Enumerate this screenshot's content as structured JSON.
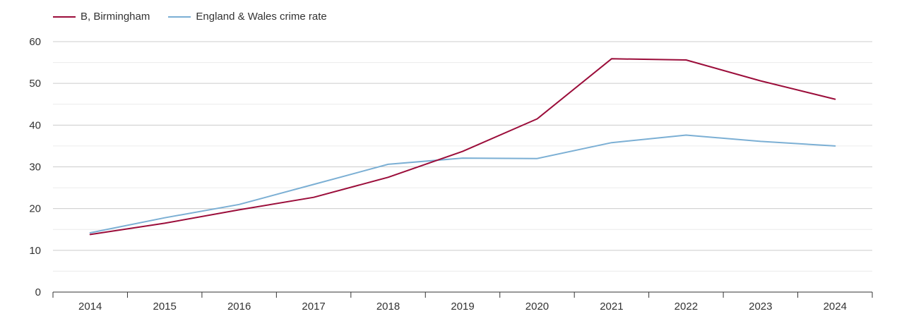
{
  "chart_data": {
    "type": "line",
    "title": "",
    "xlabel": "",
    "ylabel": "",
    "categories": [
      "2014",
      "2015",
      "2016",
      "2017",
      "2018",
      "2019",
      "2020",
      "2021",
      "2022",
      "2023",
      "2024"
    ],
    "ylim": [
      0,
      60
    ],
    "yticks": [
      0,
      10,
      20,
      30,
      40,
      50,
      60
    ],
    "grid": true,
    "legend_position": "top-left",
    "series": [
      {
        "name": "B, Birmingham",
        "color": "#9b0d3a",
        "values": [
          13.8,
          16.5,
          19.7,
          22.7,
          27.5,
          33.7,
          41.5,
          55.9,
          55.6,
          50.6,
          46.2
        ]
      },
      {
        "name": "England & Wales crime rate",
        "color": "#7bafd4",
        "values": [
          14.2,
          17.8,
          21.0,
          25.8,
          30.6,
          32.1,
          32.0,
          35.8,
          37.6,
          36.1,
          35.0
        ]
      }
    ]
  }
}
